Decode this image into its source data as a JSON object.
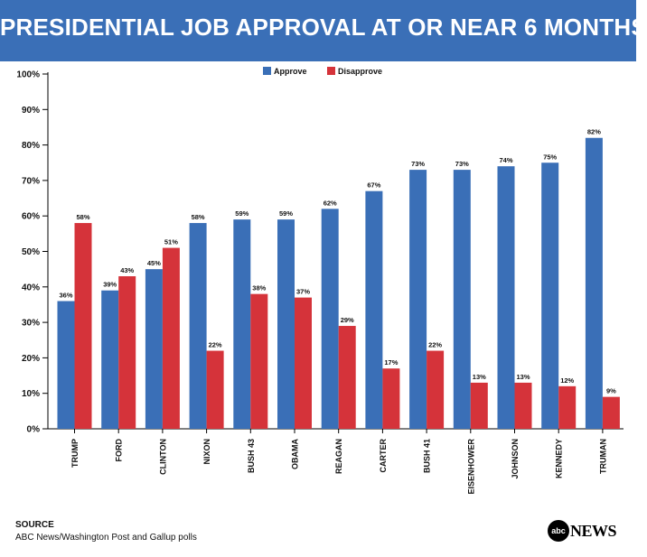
{
  "header": {
    "title": "PRESIDENTIAL JOB APPROVAL AT OR NEAR 6 MONTHS"
  },
  "footer": {
    "source_label": "SOURCE",
    "source_text": "ABC News/Washington Post  and Gallup polls"
  },
  "logo": {
    "mark": "abc",
    "word": "NEWS"
  },
  "colors": {
    "banner": "#3a6fb7",
    "approve": "#3a6fb7",
    "disapprove": "#d5333a"
  },
  "chart_data": {
    "type": "bar",
    "title": "PRESIDENTIAL JOB APPROVAL AT OR NEAR 6 MONTHS",
    "categories": [
      "TRUMP",
      "FORD",
      "CLINTON",
      "NIXON",
      "BUSH 43",
      "OBAMA",
      "REAGAN",
      "CARTER",
      "BUSH 41",
      "EISENHOWER",
      "JOHNSON",
      "KENNEDY",
      "TRUMAN"
    ],
    "series": [
      {
        "name": "Approve",
        "color": "#3a6fb7",
        "values": [
          36,
          39,
          45,
          58,
          59,
          59,
          62,
          67,
          73,
          73,
          74,
          75,
          82
        ]
      },
      {
        "name": "Disapprove",
        "color": "#d5333a",
        "values": [
          58,
          43,
          51,
          22,
          38,
          37,
          29,
          17,
          22,
          13,
          13,
          12,
          9
        ]
      }
    ],
    "value_labels": {
      "approve": [
        "36%",
        "39%",
        "45%",
        "58%",
        "59%",
        "59%",
        "62%",
        "67%",
        "73%",
        "73%",
        "74%",
        "75%",
        "82%"
      ],
      "disapprove": [
        "58%",
        "43%",
        "51%",
        "22%",
        "38%",
        "37%",
        "29%",
        "17%",
        "22%",
        "13%",
        "13%",
        "12%",
        "9%"
      ]
    },
    "y_ticks": [
      "0%",
      "10%",
      "20%",
      "30%",
      "40%",
      "50%",
      "60%",
      "70%",
      "80%",
      "90%",
      "100%"
    ],
    "ylim": [
      0,
      100
    ],
    "legend_position": "top-center",
    "grid": false
  }
}
